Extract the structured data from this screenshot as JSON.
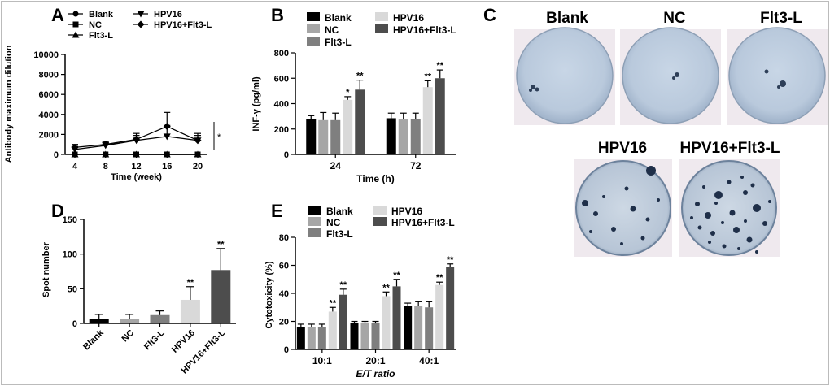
{
  "figure": {
    "colors": {
      "blank": "#000000",
      "nc": "#a6a6a6",
      "flt3l": "#7f7f7f",
      "hpv16": "#d9d9d9",
      "hpv16_flt3l": "#4d4d4d",
      "axis": "#000000"
    }
  },
  "chart_data": [
    {
      "panel": "A",
      "type": "line",
      "title": "",
      "xlabel": "Time (week)",
      "ylabel": "Antibody maximum dilution",
      "x": [
        4,
        8,
        12,
        16,
        20
      ],
      "xticks": [
        "4",
        "8",
        "12",
        "16",
        "20"
      ],
      "ylim": [
        0,
        10000
      ],
      "yticks": [
        "0",
        "2000",
        "4000",
        "6000",
        "8000",
        "10000"
      ],
      "significance": "*",
      "legend": [
        "Blank",
        "NC",
        "Flt3-L",
        "HPV16",
        "HPV16+Flt3-L"
      ],
      "series": [
        {
          "name": "Blank",
          "values": [
            0,
            0,
            0,
            0,
            0
          ],
          "errors": [
            0,
            0,
            0,
            0,
            0
          ],
          "marker": "circle"
        },
        {
          "name": "NC",
          "values": [
            0,
            0,
            0,
            0,
            0
          ],
          "errors": [
            0,
            0,
            0,
            0,
            0
          ],
          "marker": "square"
        },
        {
          "name": "Flt3-L",
          "values": [
            0,
            0,
            0,
            0,
            0
          ],
          "errors": [
            0,
            0,
            0,
            0,
            0
          ],
          "marker": "triangle-up"
        },
        {
          "name": "HPV16",
          "values": [
            500,
            900,
            1400,
            1800,
            1400
          ],
          "errors": [
            300,
            300,
            500,
            1100,
            500
          ],
          "marker": "triangle-down"
        },
        {
          "name": "HPV16+Flt3-L",
          "values": [
            700,
            1000,
            1500,
            2800,
            1400
          ],
          "errors": [
            300,
            300,
            600,
            1400,
            700
          ],
          "marker": "diamond"
        }
      ]
    },
    {
      "panel": "B",
      "type": "bar",
      "xlabel": "Time (h)",
      "ylabel": "INF-γ (pg/ml)",
      "categories": [
        "24",
        "72"
      ],
      "ylim": [
        0,
        800
      ],
      "yticks": [
        "0",
        "200",
        "400",
        "600",
        "800"
      ],
      "legend": [
        "Blank",
        "NC",
        "Flt3-L",
        "HPV16",
        "HPV16+Flt3-L"
      ],
      "series": [
        {
          "name": "Blank",
          "values": [
            280,
            285
          ],
          "errors": [
            25,
            40
          ],
          "marks": [
            "",
            ""
          ]
        },
        {
          "name": "NC",
          "values": [
            270,
            275
          ],
          "errors": [
            60,
            50
          ],
          "marks": [
            "",
            ""
          ]
        },
        {
          "name": "Flt3-L",
          "values": [
            270,
            280
          ],
          "errors": [
            55,
            45
          ],
          "marks": [
            "",
            ""
          ]
        },
        {
          "name": "HPV16",
          "values": [
            430,
            530
          ],
          "errors": [
            25,
            50
          ],
          "marks": [
            "*",
            "**"
          ]
        },
        {
          "name": "HPV16+Flt3-L",
          "values": [
            510,
            600
          ],
          "errors": [
            75,
            65
          ],
          "marks": [
            "**",
            "**"
          ]
        }
      ]
    },
    {
      "panel": "D",
      "type": "bar",
      "xlabel": "",
      "ylabel": "Spot number",
      "categories": [
        "Blank",
        "NC",
        "Flt3-L",
        "HPV16",
        "HPV16+Flt3-L"
      ],
      "values": [
        7,
        6,
        12,
        34,
        77
      ],
      "errors": [
        6,
        7,
        6,
        19,
        31
      ],
      "marks": [
        "",
        "",
        "",
        "**",
        "**"
      ],
      "ylim": [
        0,
        150
      ],
      "yticks": [
        "0",
        "50",
        "100",
        "150"
      ]
    },
    {
      "panel": "E",
      "type": "bar",
      "xlabel": "E/T ratio",
      "ylabel": "Cytotoxicity (%)",
      "categories": [
        "10:1",
        "20:1",
        "40:1"
      ],
      "ylim": [
        0,
        80
      ],
      "yticks": [
        "0",
        "20",
        "40",
        "60",
        "80"
      ],
      "legend": [
        "Blank",
        "NC",
        "Flt3-L",
        "HPV16",
        "HPV16+Flt3-L"
      ],
      "series": [
        {
          "name": "Blank",
          "values": [
            16,
            19,
            31
          ],
          "errors": [
            2,
            1,
            2
          ],
          "marks": [
            "",
            "",
            ""
          ]
        },
        {
          "name": "NC",
          "values": [
            16,
            19,
            31
          ],
          "errors": [
            2,
            1,
            3
          ],
          "marks": [
            "",
            "",
            ""
          ]
        },
        {
          "name": "Flt3-L",
          "values": [
            16,
            19,
            30
          ],
          "errors": [
            2,
            1,
            4
          ],
          "marks": [
            "",
            "",
            ""
          ]
        },
        {
          "name": "HPV16",
          "values": [
            27,
            38,
            46
          ],
          "errors": [
            3,
            3,
            2
          ],
          "marks": [
            "**",
            "**",
            "**"
          ]
        },
        {
          "name": "HPV16+Flt3-L",
          "values": [
            39,
            45,
            59
          ],
          "errors": [
            4,
            5,
            2
          ],
          "marks": [
            "**",
            "**",
            "**"
          ]
        }
      ]
    }
  ],
  "panel_c": {
    "label": "C",
    "top_labels": [
      "Blank",
      "NC",
      "Flt3-L"
    ],
    "bottom_labels": [
      "HPV16",
      "HPV16+Flt3-L"
    ]
  },
  "labels": {
    "A": "A",
    "B": "B",
    "C": "C",
    "D": "D",
    "E": "E"
  }
}
